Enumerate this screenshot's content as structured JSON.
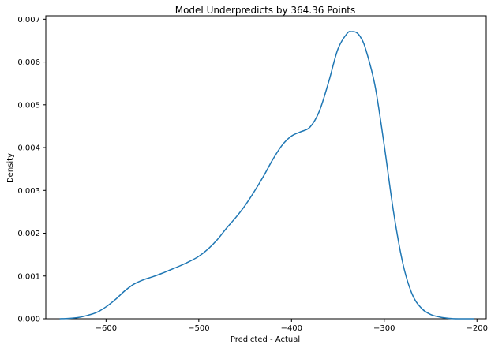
{
  "chart_data": {
    "type": "line",
    "title": "Model Underpredicts by 364.36 Points",
    "xlabel": "Predicted - Actual",
    "ylabel": "Density",
    "xlim": [
      -665,
      -190
    ],
    "ylim": [
      0,
      0.00708
    ],
    "xticks": [
      -600,
      -500,
      -400,
      -300,
      -200
    ],
    "xtick_labels": [
      "−600",
      "−500",
      "−400",
      "−300",
      "−200"
    ],
    "yticks": [
      0,
      0.001,
      0.002,
      0.003,
      0.004,
      0.005,
      0.006,
      0.007
    ],
    "ytick_labels": [
      "0.000",
      "0.001",
      "0.002",
      "0.003",
      "0.004",
      "0.005",
      "0.006",
      "0.007"
    ],
    "grid": false,
    "series": [
      {
        "color": "#1f77b4",
        "x": [
          -650,
          -640,
          -630,
          -620,
          -610,
          -600,
          -590,
          -580,
          -570,
          -560,
          -550,
          -540,
          -530,
          -520,
          -510,
          -500,
          -490,
          -480,
          -470,
          -460,
          -450,
          -440,
          -430,
          -420,
          -410,
          -400,
          -390,
          -380,
          -370,
          -360,
          -350,
          -340,
          -335,
          -330,
          -325,
          -320,
          -310,
          -300,
          -290,
          -280,
          -270,
          -260,
          -250,
          -240,
          -230,
          -220,
          -210,
          -203
        ],
        "y": [
          0.0,
          1e-05,
          3e-05,
          8e-05,
          0.00015,
          0.00028,
          0.00045,
          0.00065,
          0.00081,
          0.00091,
          0.00098,
          0.00106,
          0.00115,
          0.00124,
          0.00134,
          0.00146,
          0.00163,
          0.00185,
          0.00212,
          0.00237,
          0.00265,
          0.00298,
          0.00334,
          0.00373,
          0.00406,
          0.00427,
          0.00437,
          0.00448,
          0.00485,
          0.00553,
          0.0063,
          0.00667,
          0.00671,
          0.00669,
          0.00656,
          0.0063,
          0.00545,
          0.00405,
          0.0025,
          0.0013,
          0.00058,
          0.00025,
          0.0001,
          4e-05,
          1e-05,
          0.0,
          0.0,
          0.0
        ]
      }
    ]
  }
}
